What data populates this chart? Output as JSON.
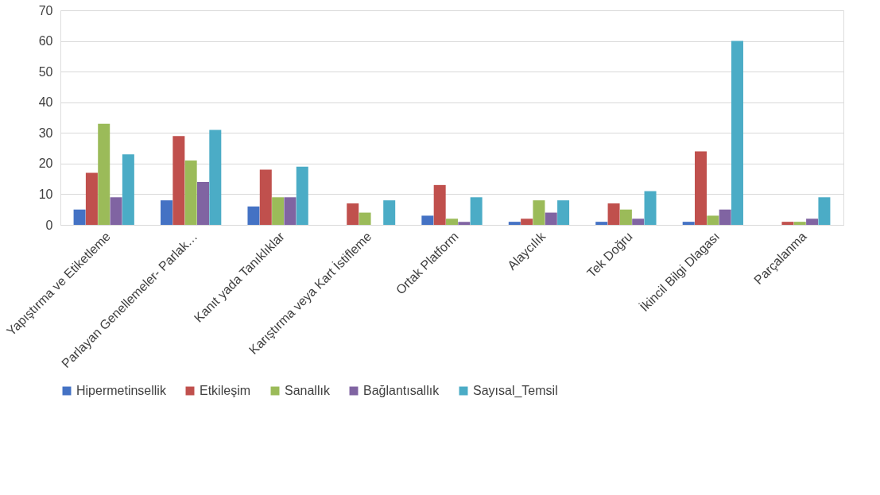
{
  "chart_data": {
    "type": "bar",
    "categories": [
      "Yapıştırma ve Etiketleme",
      "Parlayan Genellemeler- Parlak…",
      "Kanıt yada Tanıklıklar",
      "Karıştırma veya Kart İstifleme",
      "Ortak Platform",
      "Alaycılık",
      "Tek Doğru",
      "İkincil Bilgi Dlagası",
      "Parçalanma"
    ],
    "series": [
      {
        "name": "Hipermetinsellik",
        "color": "#4472c4",
        "values": [
          5,
          8,
          6,
          0,
          3,
          1,
          1,
          1,
          0
        ]
      },
      {
        "name": "Etkileşim",
        "color": "#c0504d",
        "values": [
          17,
          29,
          18,
          7,
          13,
          2,
          7,
          24,
          1
        ]
      },
      {
        "name": "Sanallık",
        "color": "#9bbb59",
        "values": [
          33,
          21,
          9,
          4,
          2,
          8,
          5,
          3,
          1
        ]
      },
      {
        "name": "Bağlantısallık",
        "color": "#8064a2",
        "values": [
          9,
          14,
          9,
          0,
          1,
          4,
          2,
          5,
          2
        ]
      },
      {
        "name": "Sayısal_Temsil",
        "color": "#4bacc6",
        "values": [
          23,
          31,
          19,
          8,
          9,
          8,
          11,
          60,
          9
        ]
      }
    ],
    "ylim": [
      0,
      70
    ],
    "yticks": [
      0,
      10,
      20,
      30,
      40,
      50,
      60,
      70
    ],
    "grid": "y",
    "legend": "bottom"
  }
}
